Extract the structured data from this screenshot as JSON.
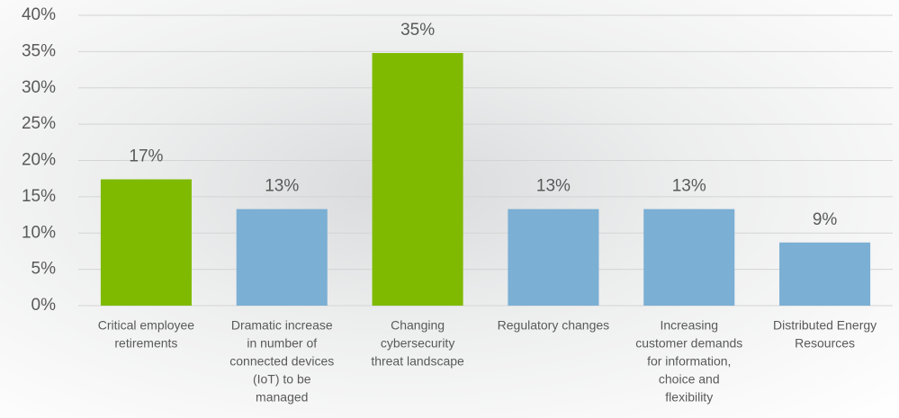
{
  "chart_data": {
    "type": "bar",
    "categories": [
      [
        "Critical employee",
        "retirements"
      ],
      [
        "Dramatic increase",
        "in number of",
        "connected devices",
        "(IoT) to be",
        "managed"
      ],
      [
        "Changing",
        "cybersecurity",
        "threat landscape"
      ],
      [
        "Regulatory changes"
      ],
      [
        "Increasing",
        "customer demands",
        "for information,",
        "choice and",
        "flexibility"
      ],
      [
        "Distributed Energy",
        "Resources"
      ]
    ],
    "values": [
      17.4,
      13.3,
      34.8,
      13.3,
      13.3,
      8.7
    ],
    "value_labels": [
      "17%",
      "13%",
      "35%",
      "13%",
      "13%",
      "9%"
    ],
    "colors": [
      "#7fba00",
      "#7bafd4",
      "#7fba00",
      "#7bafd4",
      "#7bafd4",
      "#7bafd4"
    ],
    "ylim": [
      0,
      40
    ],
    "yticks": [
      {
        "value": 0,
        "label": "0%"
      },
      {
        "value": 5,
        "label": "5%"
      },
      {
        "value": 10,
        "label": "10%"
      },
      {
        "value": 15,
        "label": "15%"
      },
      {
        "value": 20,
        "label": "20%"
      },
      {
        "value": 25,
        "label": "25%"
      },
      {
        "value": 30,
        "label": "30%"
      },
      {
        "value": 35,
        "label": "35%"
      },
      {
        "value": 40,
        "label": "40%"
      }
    ],
    "grid": true
  }
}
